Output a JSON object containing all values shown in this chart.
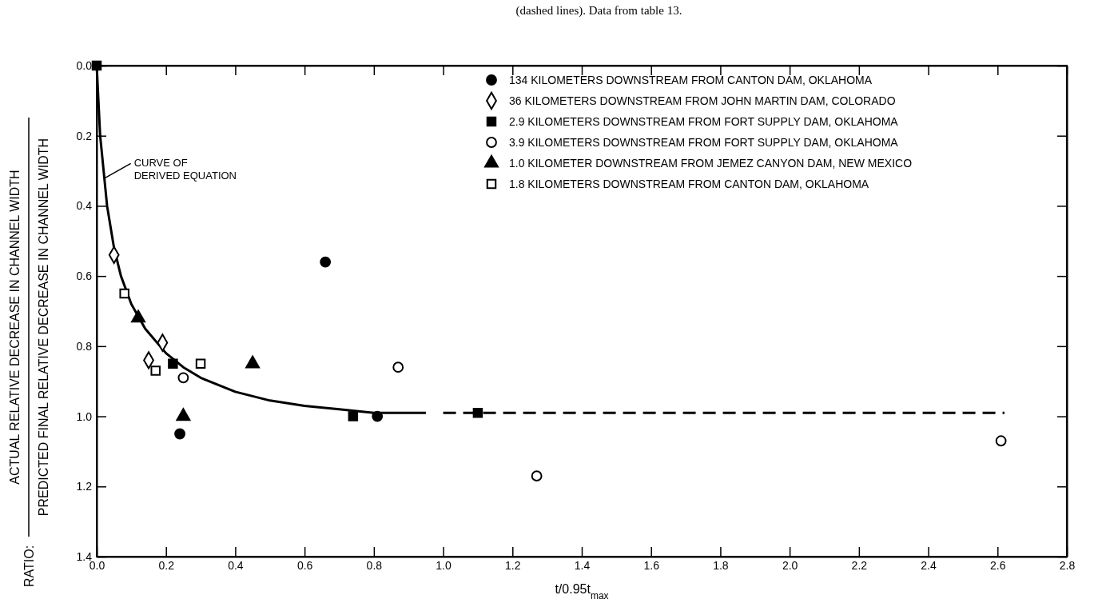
{
  "chart_data": {
    "type": "scatter",
    "title": "(dashed lines). Data from table 13.",
    "xlabel": "t/0.95t$_{max}$",
    "ylabel": "RATIO: ACTUAL RELATIVE DECREASE IN CHANNEL WIDTH PREDICTED FINAL RELATIVE DECREASE IN CHANNEL WIDTH",
    "xlim": [
      0,
      2.8
    ],
    "xticks": [
      {
        "value": 0,
        "label": "0.0"
      },
      0.2,
      0.4,
      0.6,
      0.8,
      {
        "value": 1,
        "label": "1.0"
      },
      1.2,
      1.4,
      1.6,
      1.8,
      {
        "value": 2,
        "label": "2.0"
      },
      2.2,
      2.4,
      2.6,
      2.8
    ],
    "ylim": [
      1.4,
      0
    ],
    "yticks": [
      {
        "value": 0,
        "label": "0.0"
      },
      0.2,
      0.4,
      0.6,
      0.8,
      {
        "value": 1,
        "label": "1.0"
      },
      1.2,
      1.4
    ],
    "grid": false,
    "legend": "top right",
    "annotations": [
      {
        "text": "CURVE OF DERIVED EQUATION",
        "x": 0.02,
        "y": 0.32
      }
    ],
    "series": [
      {
        "name": "134 KILOMETERS DOWNSTREAM FROM CANTON DAM, OKLAHOMA",
        "color": "#000000",
        "marker": "circle",
        "x": [
          0.24,
          0.66,
          0.81
        ],
        "values": [
          1.05,
          0.56,
          1.0
        ]
      },
      {
        "name": "36 KILOMETERS DOWNSTREAM FROM JOHN MARTIN DAM, COLORADO",
        "color": "#ffffff",
        "marker": "diamond",
        "x": [
          0.05,
          0.15,
          0.19
        ],
        "values": [
          0.54,
          0.84,
          0.79
        ]
      },
      {
        "name": "2.9 KILOMETERS DOWNSTREAM FROM FORT SUPPLY DAM, OKLAHOMA",
        "color": "#000000",
        "marker": "square",
        "x": [
          0.0,
          0.22,
          0.74,
          1.1
        ],
        "values": [
          0.0,
          0.85,
          1.0,
          0.99
        ]
      },
      {
        "name": "3.9 KILOMETERS DOWNSTREAM FROM FORT SUPPLY DAM, OKLAHOMA",
        "color": "#ffffff",
        "marker": "circle",
        "x": [
          0.25,
          0.87,
          1.27,
          2.61
        ],
        "values": [
          0.89,
          0.86,
          1.17,
          1.07
        ]
      },
      {
        "name": "1.0 KILOMETER DOWNSTREAM FROM JEMEZ CANYON DAM, NEW MEXICO",
        "color": "#000000",
        "marker": "triangle",
        "x": [
          0.12,
          0.25,
          0.45
        ],
        "values": [
          0.72,
          1.0,
          0.85
        ]
      },
      {
        "name": "1.8 KILOMETERS DOWNSTREAM FROM CANTON DAM, OKLAHOMA",
        "color": "#ffffff",
        "marker": "square",
        "x": [
          0.08,
          0.17,
          0.3
        ],
        "values": [
          0.65,
          0.87,
          0.85
        ]
      },
      {
        "type": "line",
        "color": "#000000",
        "line_style": "solid",
        "marker": "none",
        "x": [
          0,
          0.01,
          0.03,
          0.05,
          0.07,
          0.1,
          0.14,
          0.2,
          0.25,
          0.3,
          0.4,
          0.5,
          0.6,
          0.7,
          0.8,
          0.95
        ],
        "values": [
          0,
          0.2,
          0.4,
          0.52,
          0.6,
          0.68,
          0.75,
          0.82,
          0.86,
          0.89,
          0.93,
          0.955,
          0.97,
          0.98,
          0.99,
          0.99
        ]
      },
      {
        "type": "line",
        "color": "#000000",
        "line_style": "dashed",
        "marker": "none",
        "x": [
          1.0,
          2.62
        ],
        "values": [
          0.99,
          0.99
        ]
      }
    ]
  }
}
